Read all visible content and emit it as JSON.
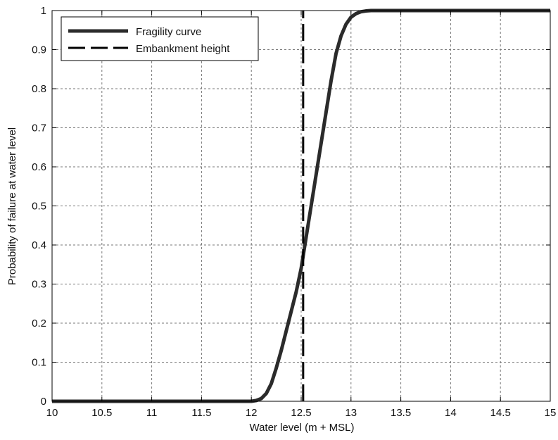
{
  "chart_data": {
    "type": "line",
    "xlabel": "Water level (m + MSL)",
    "ylabel": "Probability of failure at water level",
    "xlim": [
      10,
      15
    ],
    "ylim": [
      0,
      1
    ],
    "xticks": [
      10,
      10.5,
      11,
      11.5,
      12,
      12.5,
      13,
      13.5,
      14,
      14.5,
      15
    ],
    "yticks": [
      0,
      0.1,
      0.2,
      0.3,
      0.4,
      0.5,
      0.6,
      0.7,
      0.8,
      0.9,
      1
    ],
    "xtick_labels": [
      "10",
      "10.5",
      "11",
      "11.5",
      "12",
      "12.5",
      "13",
      "13.5",
      "14",
      "14.5",
      "15"
    ],
    "ytick_labels": [
      "0",
      "0.1",
      "0.2",
      "0.3",
      "0.4",
      "0.5",
      "0.6",
      "0.7",
      "0.8",
      "0.9",
      "1"
    ],
    "grid": true,
    "legend_position": "top-left",
    "series": [
      {
        "name": "Fragility curve",
        "style": "solid",
        "color": "#2b2b2b",
        "x": [
          10,
          11,
          12,
          12.05,
          12.1,
          12.15,
          12.2,
          12.25,
          12.3,
          12.35,
          12.4,
          12.45,
          12.5,
          12.55,
          12.6,
          12.65,
          12.7,
          12.75,
          12.8,
          12.85,
          12.9,
          12.95,
          13.0,
          13.05,
          13.1,
          13.15,
          13.2,
          13.3,
          13.5,
          14,
          15
        ],
        "y": [
          0,
          0,
          0,
          0.002,
          0.007,
          0.02,
          0.045,
          0.085,
          0.13,
          0.18,
          0.23,
          0.28,
          0.34,
          0.42,
          0.5,
          0.58,
          0.66,
          0.74,
          0.82,
          0.89,
          0.935,
          0.965,
          0.983,
          0.992,
          0.997,
          0.999,
          1,
          1,
          1,
          1,
          1
        ]
      },
      {
        "name": "Embankment height",
        "style": "dashed",
        "color": "#000000",
        "x": [
          12.52,
          12.52
        ],
        "y": [
          0,
          1
        ]
      }
    ]
  }
}
